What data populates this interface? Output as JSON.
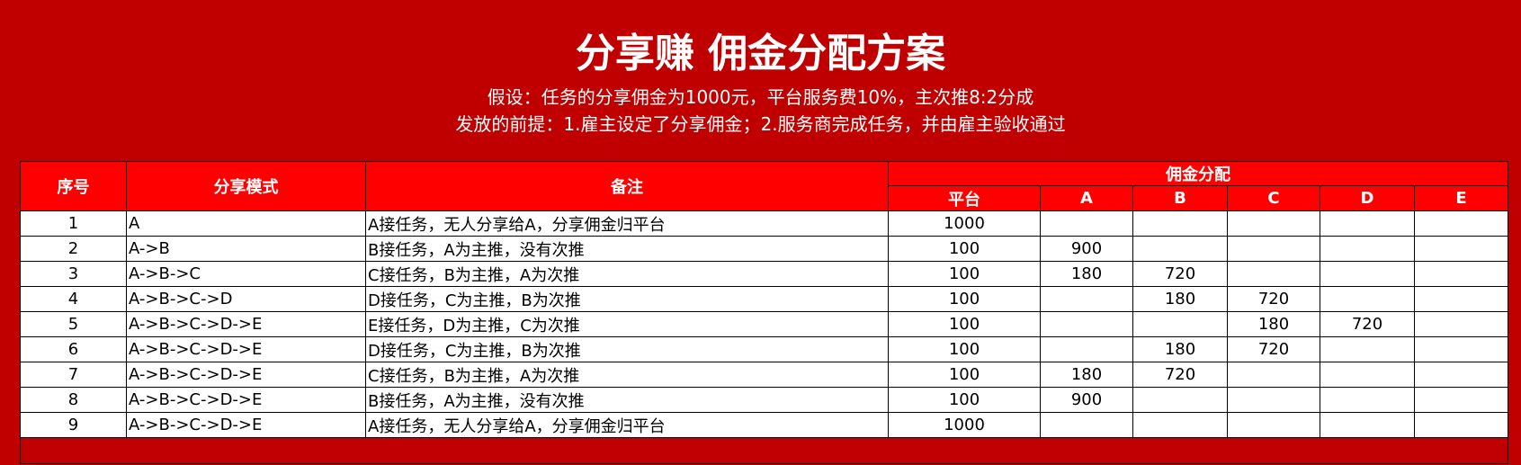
{
  "title": "分享赚 佣金分配方案",
  "assumption": "假设：任务的分享佣金为1000元，平台服务费10%，主次推8:2分成",
  "premise": "发放的前提：1.雇主设定了分享佣金；2.服务商完成任务，并由雇主验收通过",
  "colors": {
    "background": "#C00000",
    "header": "#FF0000"
  },
  "table": {
    "headers": {
      "no": "序号",
      "mode": "分享模式",
      "note": "备注",
      "commission": "佣金分配",
      "sub": [
        "平台",
        "A",
        "B",
        "C",
        "D",
        "E"
      ]
    },
    "rows": [
      {
        "no": "1",
        "mode": "A",
        "note": "A接任务，无人分享给A，分享佣金归平台",
        "vals": [
          "1000",
          "",
          "",
          "",
          "",
          ""
        ]
      },
      {
        "no": "2",
        "mode": "A->B",
        "note": "B接任务，A为主推，没有次推",
        "vals": [
          "100",
          "900",
          "",
          "",
          "",
          ""
        ]
      },
      {
        "no": "3",
        "mode": "A->B->C",
        "note": "C接任务，B为主推，A为次推",
        "vals": [
          "100",
          "180",
          "720",
          "",
          "",
          ""
        ]
      },
      {
        "no": "4",
        "mode": "A->B->C->D",
        "note": "D接任务，C为主推，B为次推",
        "vals": [
          "100",
          "",
          "180",
          "720",
          "",
          ""
        ]
      },
      {
        "no": "5",
        "mode": "A->B->C->D->E",
        "note": "E接任务，D为主推，C为次推",
        "vals": [
          "100",
          "",
          "",
          "180",
          "720",
          ""
        ]
      },
      {
        "no": "6",
        "mode": "A->B->C->D->E",
        "note": "D接任务，C为主推，B为次推",
        "vals": [
          "100",
          "",
          "180",
          "720",
          "",
          ""
        ]
      },
      {
        "no": "7",
        "mode": "A->B->C->D->E",
        "note": "C接任务，B为主推，A为次推",
        "vals": [
          "100",
          "180",
          "720",
          "",
          "",
          ""
        ]
      },
      {
        "no": "8",
        "mode": "A->B->C->D->E",
        "note": "B接任务，A为主推，没有次推",
        "vals": [
          "100",
          "900",
          "",
          "",
          "",
          ""
        ]
      },
      {
        "no": "9",
        "mode": "A->B->C->D->E",
        "note": "A接任务，无人分享给A，分享佣金归平台",
        "vals": [
          "1000",
          "",
          "",
          "",
          "",
          ""
        ]
      }
    ]
  }
}
